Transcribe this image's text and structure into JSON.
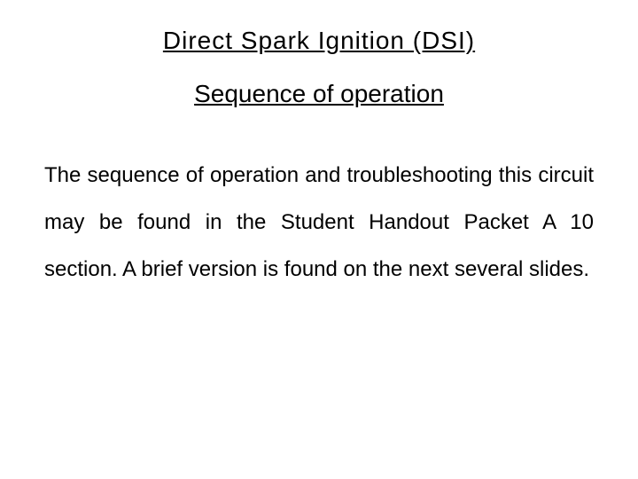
{
  "slide": {
    "title": "Direct  Spark  Ignition (DSI)",
    "subtitle": "Sequence of operation",
    "body": "The sequence of operation and troubleshooting this circuit may be found in the Student Handout Packet A 10 section.  A brief version is found on the next several slides.",
    "background_color": "#ffffff",
    "text_color": "#000000",
    "title_fontsize": 28,
    "subtitle_fontsize": 28,
    "body_fontsize": 24,
    "font_family": "Arial"
  }
}
